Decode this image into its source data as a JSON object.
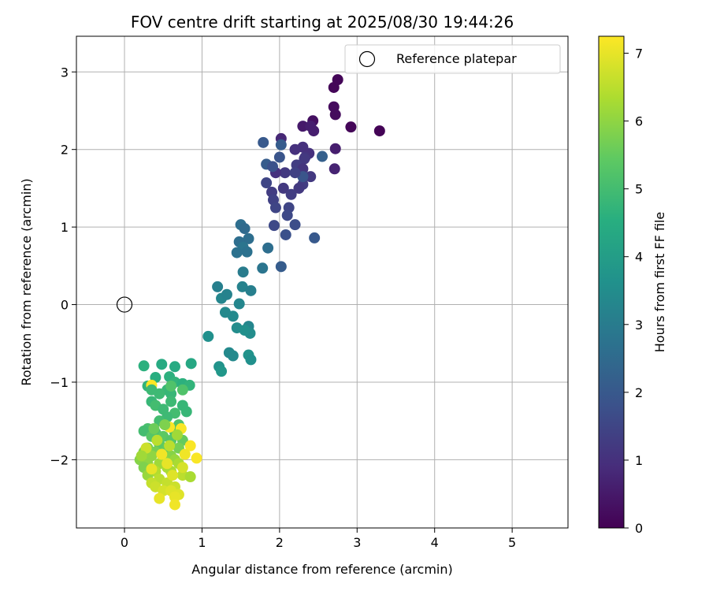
{
  "chart_data": {
    "type": "scatter",
    "title": "FOV centre drift starting at 2025/08/30 19:44:26",
    "xlabel": "Angular distance from reference (arcmin)",
    "ylabel": "Rotation from reference (arcmin)",
    "xlim": [
      -0.62,
      5.72
    ],
    "ylim": [
      -2.88,
      3.46
    ],
    "xticks": [
      0,
      1,
      2,
      3,
      4,
      5
    ],
    "yticks": [
      -2,
      -1,
      0,
      1,
      2,
      3
    ],
    "grid": true,
    "legend": {
      "position": "top-right",
      "entries": [
        "Reference platepar"
      ]
    },
    "reference_point": {
      "x": 0,
      "y": 0
    },
    "colorbar": {
      "label": "Hours from first FF file",
      "colormap": "viridis",
      "min": 0,
      "max": 7.25,
      "ticks": [
        0,
        1,
        2,
        3,
        4,
        5,
        6,
        7
      ]
    },
    "series": [
      {
        "points": [
          [
            2.7,
            2.8,
            0.1
          ],
          [
            2.75,
            2.9,
            0.1
          ],
          [
            3.29,
            2.24,
            0.05
          ],
          [
            2.92,
            2.29,
            0.1
          ],
          [
            2.7,
            2.55,
            0.2
          ],
          [
            2.72,
            2.45,
            0.2
          ],
          [
            2.43,
            2.37,
            0.3
          ],
          [
            2.3,
            2.3,
            0.5
          ],
          [
            2.4,
            2.3,
            0.6
          ],
          [
            2.44,
            2.24,
            0.6
          ],
          [
            2.72,
            2.01,
            0.6
          ],
          [
            2.71,
            1.75,
            0.7
          ],
          [
            2.02,
            2.14,
            0.8
          ],
          [
            2.3,
            2.03,
            1.0
          ],
          [
            2.2,
            2.0,
            1.0
          ],
          [
            2.38,
            1.95,
            1.0
          ],
          [
            2.33,
            1.9,
            1.1
          ],
          [
            2.32,
            1.88,
            1.2
          ],
          [
            2.22,
            1.8,
            1.3
          ],
          [
            2.3,
            1.75,
            1.1
          ],
          [
            2.07,
            1.7,
            1.2
          ],
          [
            1.95,
            1.7,
            1.0
          ],
          [
            2.4,
            1.65,
            1.2
          ],
          [
            2.3,
            1.55,
            1.3
          ],
          [
            2.25,
            1.5,
            1.2
          ],
          [
            2.05,
            1.5,
            1.2
          ],
          [
            1.9,
            1.45,
            1.3
          ],
          [
            2.15,
            1.42,
            1.3
          ],
          [
            1.83,
            1.57,
            1.5
          ],
          [
            1.92,
            1.35,
            1.4
          ],
          [
            2.12,
            1.25,
            1.5
          ],
          [
            1.95,
            1.25,
            1.5
          ],
          [
            2.1,
            1.15,
            1.6
          ],
          [
            1.93,
            1.02,
            1.6
          ],
          [
            2.2,
            1.03,
            1.7
          ],
          [
            2.08,
            0.9,
            1.8
          ],
          [
            2.45,
            0.86,
            2.0
          ],
          [
            2.02,
            0.49,
            2.1
          ],
          [
            1.79,
            2.09,
            2.0
          ],
          [
            2.02,
            2.06,
            2.1
          ],
          [
            1.83,
            1.81,
            2.1
          ],
          [
            2.55,
            1.91,
            2.2
          ],
          [
            1.91,
            1.78,
            1.8
          ],
          [
            2.0,
            1.9,
            1.9
          ],
          [
            2.3,
            1.65,
            1.9
          ],
          [
            2.2,
            1.7,
            1.4
          ],
          [
            1.5,
            1.03,
            2.6
          ],
          [
            1.55,
            0.98,
            2.5
          ],
          [
            1.6,
            0.85,
            2.6
          ],
          [
            1.48,
            0.81,
            2.6
          ],
          [
            1.53,
            0.74,
            2.8
          ],
          [
            1.85,
            0.73,
            2.6
          ],
          [
            1.58,
            0.68,
            2.7
          ],
          [
            1.45,
            0.67,
            2.7
          ],
          [
            1.78,
            0.47,
            2.8
          ],
          [
            1.53,
            0.42,
            3.0
          ],
          [
            1.2,
            0.23,
            3.1
          ],
          [
            1.52,
            0.23,
            3.2
          ],
          [
            1.63,
            0.18,
            3.1
          ],
          [
            1.25,
            0.08,
            3.3
          ],
          [
            1.32,
            0.13,
            3.2
          ],
          [
            1.48,
            0.01,
            3.3
          ],
          [
            1.3,
            -0.1,
            3.4
          ],
          [
            1.4,
            -0.15,
            3.4
          ],
          [
            1.45,
            -0.3,
            3.5
          ],
          [
            1.6,
            -0.28,
            3.3
          ],
          [
            1.62,
            -0.37,
            3.5
          ],
          [
            1.55,
            -0.33,
            3.6
          ],
          [
            1.08,
            -0.41,
            3.6
          ],
          [
            1.35,
            -0.62,
            3.4
          ],
          [
            1.4,
            -0.66,
            3.4
          ],
          [
            1.6,
            -0.65,
            3.7
          ],
          [
            1.63,
            -0.71,
            3.6
          ],
          [
            1.22,
            -0.8,
            3.7
          ],
          [
            1.25,
            -0.86,
            3.8
          ],
          [
            0.86,
            -0.76,
            4.3
          ],
          [
            0.25,
            -0.79,
            4.6
          ],
          [
            0.48,
            -0.77,
            4.4
          ],
          [
            0.65,
            -0.8,
            4.4
          ],
          [
            0.4,
            -0.94,
            4.5
          ],
          [
            0.58,
            -0.93,
            4.6
          ],
          [
            0.3,
            -1.05,
            4.7
          ],
          [
            0.65,
            -1.0,
            4.7
          ],
          [
            0.75,
            -1.02,
            4.6
          ],
          [
            0.84,
            -1.04,
            4.7
          ],
          [
            0.55,
            -1.1,
            4.8
          ],
          [
            0.45,
            -1.15,
            4.9
          ],
          [
            0.6,
            -1.15,
            4.8
          ],
          [
            0.35,
            -1.25,
            4.8
          ],
          [
            0.6,
            -1.25,
            4.9
          ],
          [
            0.75,
            -1.3,
            4.8
          ],
          [
            0.4,
            -1.3,
            5.0
          ],
          [
            0.5,
            -1.35,
            4.9
          ],
          [
            0.8,
            -1.38,
            4.8
          ],
          [
            0.65,
            -1.4,
            5.0
          ],
          [
            0.55,
            -1.45,
            4.9
          ],
          [
            0.45,
            -1.5,
            5.0
          ],
          [
            0.7,
            -1.55,
            5.2
          ],
          [
            0.3,
            -1.6,
            5.1
          ],
          [
            0.4,
            -1.65,
            5.2
          ],
          [
            0.65,
            -1.65,
            5.2
          ],
          [
            0.25,
            -1.63,
            5.0
          ],
          [
            0.35,
            -1.7,
            5.3
          ],
          [
            0.5,
            -1.7,
            5.4
          ],
          [
            0.6,
            -1.75,
            5.3
          ],
          [
            0.75,
            -1.75,
            5.5
          ],
          [
            0.45,
            -1.8,
            5.4
          ],
          [
            0.3,
            -1.85,
            5.6
          ],
          [
            0.55,
            -1.85,
            5.5
          ],
          [
            0.7,
            -1.85,
            5.7
          ],
          [
            0.25,
            -1.9,
            5.8
          ],
          [
            0.4,
            -1.9,
            5.7
          ],
          [
            0.6,
            -1.95,
            5.9
          ],
          [
            0.35,
            -1.95,
            6.0
          ],
          [
            0.5,
            -2.0,
            6.0
          ],
          [
            0.65,
            -2.0,
            6.1
          ],
          [
            0.2,
            -2.0,
            5.9
          ],
          [
            0.3,
            -2.05,
            6.0
          ],
          [
            0.45,
            -2.05,
            6.2
          ],
          [
            0.7,
            -2.05,
            6.3
          ],
          [
            0.25,
            -2.1,
            5.8
          ],
          [
            0.55,
            -2.1,
            6.3
          ],
          [
            0.4,
            -2.15,
            6.4
          ],
          [
            0.6,
            -2.15,
            6.3
          ],
          [
            0.3,
            -2.2,
            6.1
          ],
          [
            0.75,
            -2.2,
            6.5
          ],
          [
            0.45,
            -2.25,
            6.5
          ],
          [
            0.85,
            -2.22,
            6.3
          ],
          [
            0.35,
            -2.3,
            6.6
          ],
          [
            0.55,
            -2.3,
            6.6
          ],
          [
            0.65,
            -2.35,
            6.7
          ],
          [
            0.4,
            -2.35,
            6.7
          ],
          [
            0.5,
            -2.4,
            6.8
          ],
          [
            0.6,
            -2.4,
            6.9
          ],
          [
            0.7,
            -2.45,
            6.9
          ],
          [
            0.45,
            -2.5,
            7.0
          ],
          [
            0.65,
            -2.48,
            7.0
          ],
          [
            0.65,
            -2.58,
            7.1
          ],
          [
            0.93,
            -1.98,
            7.2
          ],
          [
            0.85,
            -1.82,
            7.2
          ],
          [
            0.35,
            -1.04,
            7.25
          ],
          [
            0.58,
            -1.58,
            7.2
          ],
          [
            0.73,
            -1.6,
            7.2
          ],
          [
            0.48,
            -1.93,
            7.1
          ],
          [
            0.78,
            -1.93,
            7.1
          ],
          [
            0.55,
            -2.05,
            7.0
          ],
          [
            0.35,
            -2.12,
            7.0
          ],
          [
            0.62,
            -2.2,
            6.9
          ],
          [
            0.75,
            -2.1,
            6.8
          ],
          [
            0.28,
            -1.85,
            6.7
          ],
          [
            0.42,
            -1.75,
            6.5
          ],
          [
            0.58,
            -1.82,
            6.5
          ],
          [
            0.68,
            -1.68,
            6.2
          ],
          [
            0.38,
            -1.6,
            5.6
          ],
          [
            0.52,
            -1.55,
            5.8
          ],
          [
            0.22,
            -1.95,
            6.2
          ],
          [
            0.6,
            -1.05,
            5.2
          ],
          [
            0.75,
            -1.1,
            5.2
          ],
          [
            0.35,
            -1.1,
            4.9
          ]
        ]
      }
    ]
  }
}
